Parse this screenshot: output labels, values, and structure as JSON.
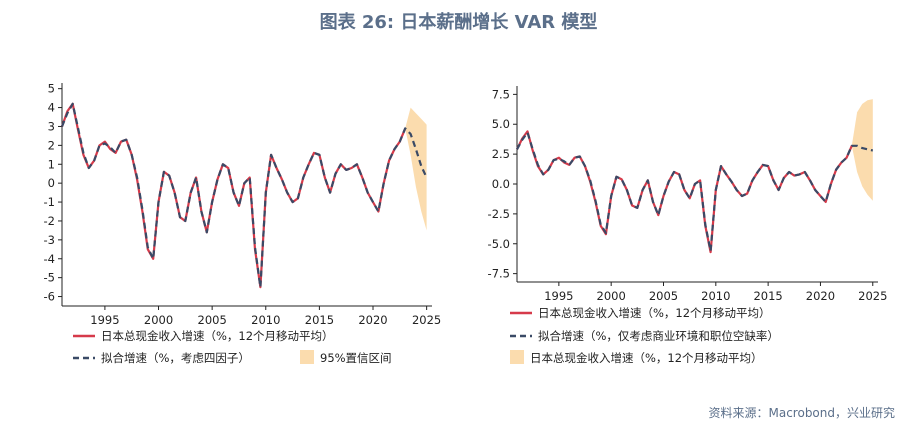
{
  "title": "图表 26: 日本薪酬增长 VAR 模型",
  "source": "资料来源：Macrobond，兴业研究",
  "colors": {
    "actual": "#d63a4a",
    "fitted": "#3a4a66",
    "band": "#fbdcae"
  },
  "chart_data": [
    {
      "type": "line",
      "title": "",
      "xlabel": "",
      "ylabel": "",
      "xlim": [
        1991,
        2025.5
      ],
      "ylim": [
        -6.5,
        5.3
      ],
      "yticks": [
        5,
        4,
        3,
        2,
        1,
        0,
        -1,
        -2,
        -3,
        -4,
        -5,
        -6
      ],
      "ytick_labels": [
        "5",
        "4",
        "3",
        "2",
        "1",
        "0",
        "-1",
        "-2",
        "-3",
        "-4",
        "-5",
        "-6"
      ],
      "xticks": [
        1995,
        2000,
        2005,
        2010,
        2015,
        2020,
        2025
      ],
      "xtick_labels": [
        "1995",
        "2000",
        "2005",
        "2010",
        "2015",
        "2020",
        "2025"
      ],
      "legend_position": "bottom",
      "series": [
        {
          "name": "日本总现金收入增速（%，12个月移动平均）",
          "style": "solid",
          "x": [
            1991,
            1991.5,
            1992,
            1992.5,
            1993,
            1993.5,
            1994,
            1994.5,
            1995,
            1995.5,
            1996,
            1996.5,
            1997,
            1997.5,
            1998,
            1998.5,
            1999,
            1999.5,
            2000,
            2000.5,
            2001,
            2001.5,
            2002,
            2002.5,
            2003,
            2003.5,
            2004,
            2004.5,
            2005,
            2005.5,
            2006,
            2006.5,
            2007,
            2007.5,
            2008,
            2008.5,
            2009,
            2009.5,
            2010,
            2010.5,
            2011,
            2011.5,
            2012,
            2012.5,
            2013,
            2013.5,
            2014,
            2014.5,
            2015,
            2015.5,
            2016,
            2016.5,
            2017,
            2017.5,
            2018,
            2018.5,
            2019,
            2019.5,
            2020,
            2020.5,
            2021,
            2021.5,
            2022,
            2022.5,
            2023
          ],
          "y": [
            3.0,
            3.8,
            4.2,
            2.8,
            1.5,
            0.8,
            1.2,
            2.0,
            2.2,
            1.8,
            1.6,
            2.2,
            2.3,
            1.5,
            0.2,
            -1.5,
            -3.5,
            -4.0,
            -1.0,
            0.6,
            0.4,
            -0.5,
            -1.8,
            -2.0,
            -0.5,
            0.3,
            -1.5,
            -2.6,
            -1.0,
            0.2,
            1.0,
            0.8,
            -0.5,
            -1.2,
            0.0,
            0.3,
            -3.5,
            -5.5,
            -0.5,
            1.5,
            0.8,
            0.2,
            -0.5,
            -1.0,
            -0.8,
            0.3,
            1.0,
            1.6,
            1.5,
            0.3,
            -0.5,
            0.5,
            1.0,
            0.7,
            0.8,
            1.0,
            0.3,
            -0.5,
            -1.0,
            -1.5,
            0.0,
            1.2,
            1.8,
            2.2,
            2.9
          ]
        },
        {
          "name": "拟合增速（%，考虑四因子）",
          "style": "dashed",
          "x": [
            1991,
            1991.5,
            1992,
            1992.5,
            1993,
            1993.5,
            1994,
            1994.5,
            1995,
            1995.5,
            1996,
            1996.5,
            1997,
            1997.5,
            1998,
            1998.5,
            1999,
            1999.5,
            2000,
            2000.5,
            2001,
            2001.5,
            2002,
            2002.5,
            2003,
            2003.5,
            2004,
            2004.5,
            2005,
            2005.5,
            2006,
            2006.5,
            2007,
            2007.5,
            2008,
            2008.5,
            2009,
            2009.5,
            2010,
            2010.5,
            2011,
            2011.5,
            2012,
            2012.5,
            2013,
            2013.5,
            2014,
            2014.5,
            2015,
            2015.5,
            2016,
            2016.5,
            2017,
            2017.5,
            2018,
            2018.5,
            2019,
            2019.5,
            2020,
            2020.5,
            2021,
            2021.5,
            2022,
            2022.5,
            2023,
            2023.5,
            2024,
            2024.5,
            2025
          ],
          "y": [
            3.0,
            3.7,
            4.2,
            2.9,
            1.6,
            0.8,
            1.2,
            2.0,
            2.1,
            1.9,
            1.6,
            2.2,
            2.3,
            1.5,
            0.3,
            -1.4,
            -3.4,
            -4.0,
            -1.0,
            0.6,
            0.4,
            -0.5,
            -1.8,
            -2.0,
            -0.5,
            0.3,
            -1.5,
            -2.6,
            -1.0,
            0.2,
            1.0,
            0.8,
            -0.5,
            -1.2,
            0.0,
            0.3,
            -3.4,
            -5.5,
            -0.5,
            1.5,
            0.8,
            0.2,
            -0.5,
            -1.0,
            -0.8,
            0.3,
            1.0,
            1.6,
            1.5,
            0.3,
            -0.5,
            0.5,
            1.0,
            0.7,
            0.8,
            1.0,
            0.3,
            -0.5,
            -1.0,
            -1.5,
            0.0,
            1.2,
            1.8,
            2.2,
            2.9,
            2.6,
            1.8,
            0.9,
            0.3
          ]
        },
        {
          "name": "95%置信区间",
          "style": "band",
          "x": [
            2023,
            2023.5,
            2024,
            2024.5,
            2025
          ],
          "upper": [
            2.9,
            4.0,
            3.7,
            3.4,
            3.1
          ],
          "lower": [
            2.9,
            1.5,
            -0.2,
            -1.5,
            -2.5
          ]
        }
      ]
    },
    {
      "type": "line",
      "title": "",
      "xlabel": "",
      "ylabel": "",
      "xlim": [
        1991,
        2025.5
      ],
      "ylim": [
        -8.2,
        8.2
      ],
      "yticks": [
        7.5,
        5.0,
        2.5,
        0.0,
        -2.5,
        -5.0,
        -7.5
      ],
      "ytick_labels": [
        "7.5",
        "5.0",
        "2.5",
        "0.0",
        "-2.5",
        "-5.0",
        "-7.5"
      ],
      "xticks": [
        1995,
        2000,
        2005,
        2010,
        2015,
        2020,
        2025
      ],
      "xtick_labels": [
        "1995",
        "2000",
        "2005",
        "2010",
        "2015",
        "2020",
        "2025"
      ],
      "legend_position": "bottom",
      "series": [
        {
          "name": "日本总现金收入增速（%，12个月移动平均）",
          "style": "solid",
          "x": [
            1991,
            1991.5,
            1992,
            1992.5,
            1993,
            1993.5,
            1994,
            1994.5,
            1995,
            1995.5,
            1996,
            1996.5,
            1997,
            1997.5,
            1998,
            1998.5,
            1999,
            1999.5,
            2000,
            2000.5,
            2001,
            2001.5,
            2002,
            2002.5,
            2003,
            2003.5,
            2004,
            2004.5,
            2005,
            2005.5,
            2006,
            2006.5,
            2007,
            2007.5,
            2008,
            2008.5,
            2009,
            2009.5,
            2010,
            2010.5,
            2011,
            2011.5,
            2012,
            2012.5,
            2013,
            2013.5,
            2014,
            2014.5,
            2015,
            2015.5,
            2016,
            2016.5,
            2017,
            2017.5,
            2018,
            2018.5,
            2019,
            2019.5,
            2020,
            2020.5,
            2021,
            2021.5,
            2022,
            2022.5,
            2023
          ],
          "y": [
            2.9,
            3.8,
            4.4,
            2.8,
            1.5,
            0.8,
            1.2,
            2.0,
            2.2,
            1.8,
            1.6,
            2.2,
            2.3,
            1.5,
            0.2,
            -1.5,
            -3.5,
            -4.2,
            -1.0,
            0.6,
            0.4,
            -0.5,
            -1.8,
            -2.0,
            -0.5,
            0.3,
            -1.5,
            -2.6,
            -1.0,
            0.2,
            1.0,
            0.8,
            -0.5,
            -1.2,
            0.0,
            0.3,
            -3.5,
            -5.7,
            -0.5,
            1.5,
            0.8,
            0.2,
            -0.5,
            -1.0,
            -0.8,
            0.3,
            1.0,
            1.6,
            1.5,
            0.3,
            -0.5,
            0.5,
            1.0,
            0.7,
            0.8,
            1.0,
            0.3,
            -0.5,
            -1.0,
            -1.5,
            0.0,
            1.2,
            1.8,
            2.2,
            3.2
          ]
        },
        {
          "name": "拟合增速（%，仅考虑商业环境和职位空缺率）",
          "style": "dashed",
          "x": [
            1991,
            1991.5,
            1992,
            1992.5,
            1993,
            1993.5,
            1994,
            1994.5,
            1995,
            1995.5,
            1996,
            1996.5,
            1997,
            1997.5,
            1998,
            1998.5,
            1999,
            1999.5,
            2000,
            2000.5,
            2001,
            2001.5,
            2002,
            2002.5,
            2003,
            2003.5,
            2004,
            2004.5,
            2005,
            2005.5,
            2006,
            2006.5,
            2007,
            2007.5,
            2008,
            2008.5,
            2009,
            2009.5,
            2010,
            2010.5,
            2011,
            2011.5,
            2012,
            2012.5,
            2013,
            2013.5,
            2014,
            2014.5,
            2015,
            2015.5,
            2016,
            2016.5,
            2017,
            2017.5,
            2018,
            2018.5,
            2019,
            2019.5,
            2020,
            2020.5,
            2021,
            2021.5,
            2022,
            2022.5,
            2023,
            2023.5,
            2024,
            2024.5,
            2025
          ],
          "y": [
            2.9,
            3.7,
            4.3,
            2.9,
            1.6,
            0.8,
            1.2,
            2.0,
            2.1,
            1.9,
            1.6,
            2.2,
            2.3,
            1.5,
            0.3,
            -1.4,
            -3.4,
            -4.1,
            -1.0,
            0.6,
            0.4,
            -0.5,
            -1.8,
            -2.0,
            -0.5,
            0.3,
            -1.5,
            -2.6,
            -1.0,
            0.2,
            1.0,
            0.8,
            -0.5,
            -1.2,
            0.0,
            0.3,
            -3.4,
            -5.6,
            -0.5,
            1.5,
            0.8,
            0.2,
            -0.5,
            -1.0,
            -0.8,
            0.3,
            1.0,
            1.6,
            1.5,
            0.3,
            -0.5,
            0.5,
            1.0,
            0.7,
            0.8,
            1.0,
            0.3,
            -0.5,
            -1.0,
            -1.5,
            0.0,
            1.2,
            1.8,
            2.2,
            3.2,
            3.2,
            3.0,
            2.9,
            2.8
          ]
        },
        {
          "name": "日本总现金收入增速（%，12个月移动平均）",
          "style": "band",
          "x": [
            2023,
            2023.5,
            2024,
            2024.5,
            2025
          ],
          "upper": [
            3.2,
            6.0,
            6.7,
            7.0,
            7.1
          ],
          "lower": [
            3.2,
            1.0,
            -0.2,
            -0.9,
            -1.4
          ]
        }
      ]
    }
  ]
}
